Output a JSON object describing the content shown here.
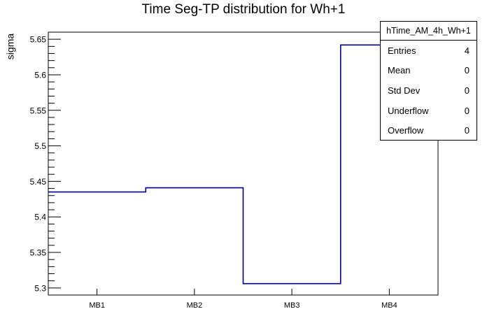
{
  "title": "Time Seg-TP distribution for Wh+1",
  "stats": {
    "header": "hTime_AM_4h_Wh+1",
    "rows": [
      {
        "label": "Entries",
        "value": "4"
      },
      {
        "label": "Mean",
        "value": "0"
      },
      {
        "label": "Std Dev",
        "value": "0"
      },
      {
        "label": "Underflow",
        "value": "0"
      },
      {
        "label": "Overflow",
        "value": "0"
      }
    ]
  },
  "chart_data": {
    "type": "bar",
    "style": "step-outline-histogram",
    "categories": [
      "MB1",
      "MB2",
      "MB3",
      "MB4"
    ],
    "values": [
      5.435,
      5.441,
      5.306,
      5.642
    ],
    "title": "Time Seg-TP distribution for Wh+1",
    "xlabel": "",
    "ylabel": "sigma",
    "ylim": [
      5.29,
      5.66
    ],
    "yticks": {
      "major_values": [
        5.3,
        5.35,
        5.4,
        5.45,
        5.5,
        5.55,
        5.6,
        5.65
      ],
      "major_labels": [
        "5.3",
        "5.35",
        "5.4",
        "5.45",
        "5.5",
        "5.55",
        "5.6",
        "5.65"
      ],
      "minor_step": 0.01
    },
    "line_color": "#000099",
    "frame_color": "#000000",
    "grid": false,
    "legend": false
  }
}
